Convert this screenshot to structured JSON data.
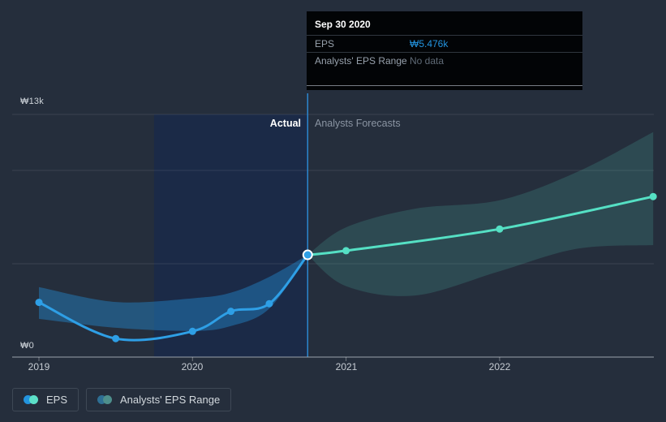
{
  "page": {
    "background": "#252e3c"
  },
  "tooltip": {
    "date": "Sep 30 2020",
    "rows": [
      {
        "label": "EPS",
        "value": "₩5.476k",
        "value_color": "#2394df"
      },
      {
        "label": "Analysts' EPS Range",
        "value": "No data",
        "value_color": "#5f6a76"
      }
    ]
  },
  "axis": {
    "y_top_label": "₩13k",
    "y_bottom_label": "₩0"
  },
  "regions": {
    "actual": "Actual",
    "forecast": "Analysts Forecasts"
  },
  "legend": [
    {
      "label": "EPS",
      "dot_colors": [
        "#2394df",
        "#5ce0c8"
      ]
    },
    {
      "label": "Analysts' EPS Range",
      "dot_colors": [
        "#2e6f94",
        "#4e8f8c"
      ]
    }
  ],
  "chart_data": {
    "type": "line",
    "title": "EPS actual vs analysts forecasts (KRW)",
    "x_ticks": [
      "2019",
      "2020",
      "2021",
      "2022"
    ],
    "x_range_years": [
      2019,
      2023
    ],
    "y_axis": {
      "min_k": 0,
      "max_k": 13,
      "unit": "₩ thousands",
      "gridline_values_k": [
        13,
        10,
        5,
        0
      ],
      "top_label": "₩13k",
      "bottom_label": "₩0"
    },
    "grid": true,
    "divider_t": 2020.75,
    "highlight_period": {
      "from_t": 2019.75,
      "to_t": 2020.75
    },
    "selected_point": {
      "date": "Sep 30 2020",
      "t": 2020.75,
      "eps_k": 5.476
    },
    "colors": {
      "actual_line": "#2e9fe6",
      "forecast_line": "#55e0c4",
      "divider": "#2c87cf",
      "highlight_fill": "#1b2a47"
    },
    "series": [
      {
        "name": "EPS",
        "kind": "actual",
        "color": "#2e9fe6",
        "points": [
          [
            2019.0,
            2.93
          ],
          [
            2019.5,
            0.99
          ],
          [
            2020.0,
            1.38
          ],
          [
            2020.25,
            2.45
          ],
          [
            2020.5,
            2.86
          ],
          [
            2020.75,
            5.476
          ]
        ]
      },
      {
        "name": "EPS forecast",
        "kind": "forecast",
        "color": "#55e0c4",
        "points": [
          [
            2020.75,
            5.476
          ],
          [
            2021.0,
            5.7
          ],
          [
            2022.0,
            6.86
          ],
          [
            2023.0,
            8.6
          ]
        ]
      }
    ],
    "bands": [
      {
        "name": "analysts-eps-range-past",
        "color": "rgba(35,148,223,0.40)",
        "points": [
          [
            2019.0,
            3.75,
            2.05
          ],
          [
            2019.5,
            2.95,
            1.57
          ],
          [
            2020.0,
            3.15,
            1.4
          ],
          [
            2020.25,
            3.45,
            1.66
          ],
          [
            2020.5,
            4.3,
            2.6
          ],
          [
            2020.75,
            5.476,
            5.476
          ]
        ]
      },
      {
        "name": "analysts-eps-range-forecast",
        "color": "rgba(85,224,196,0.16)",
        "points": [
          [
            2020.75,
            5.476,
            5.476
          ],
          [
            2021.0,
            6.95,
            3.8
          ],
          [
            2021.45,
            7.95,
            3.3
          ],
          [
            2022.0,
            8.4,
            4.6
          ],
          [
            2022.5,
            9.9,
            5.8
          ],
          [
            2023.0,
            12.05,
            6.0
          ]
        ]
      }
    ]
  }
}
